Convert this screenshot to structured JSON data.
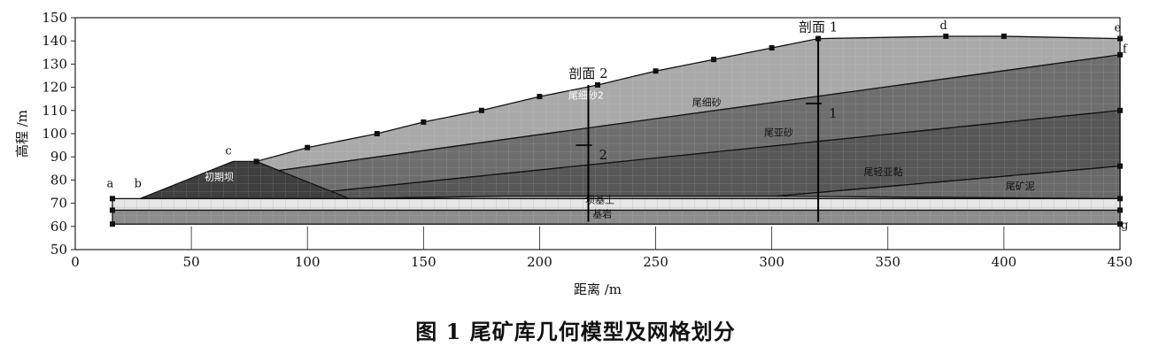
{
  "caption": "图 1    尾矿库几何模型及网格划分",
  "x_axis": {
    "title": "距离 /m",
    "min": 0,
    "max": 450,
    "ticks": [
      0,
      50,
      100,
      150,
      200,
      250,
      300,
      350,
      400,
      450
    ]
  },
  "y_axis": {
    "title": "高程 /m",
    "min": 50,
    "max": 150,
    "ticks": [
      50,
      60,
      70,
      80,
      90,
      100,
      110,
      120,
      130,
      140,
      150
    ]
  },
  "colors": {
    "dam": "#3f3f3f",
    "fine_sand_2": "#a9a9a9",
    "fine_sand": "#6e6e6e",
    "silty_sand": "#575757",
    "silty_clay": "#cdcdcd",
    "tailings_mud": "#6a6a6a",
    "foundation_soil": "#e6e6e6",
    "bedrock": "#8c8c8c",
    "outline": "#111111"
  },
  "regions": [
    {
      "key": "fine_sand_2",
      "label": "尾细砂2",
      "points": [
        [
          78,
          88
        ],
        [
          100,
          94
        ],
        [
          130,
          100
        ],
        [
          150,
          105
        ],
        [
          175,
          110
        ],
        [
          200,
          116
        ],
        [
          225,
          121
        ],
        [
          250,
          127
        ],
        [
          275,
          132
        ],
        [
          300,
          137
        ],
        [
          320,
          141
        ],
        [
          375,
          142
        ],
        [
          400,
          142
        ],
        [
          450,
          141
        ],
        [
          450,
          134
        ],
        [
          87,
          84
        ]
      ],
      "label_at": [
        220,
        115
      ]
    },
    {
      "key": "fine_sand",
      "label": "尾细砂",
      "points": [
        [
          87,
          84
        ],
        [
          450,
          134
        ],
        [
          450,
          110
        ],
        [
          109,
          75
        ]
      ],
      "label_at": [
        272,
        112
      ]
    },
    {
      "key": "silty_sand",
      "label": "尾亚砂",
      "points": [
        [
          109,
          75
        ],
        [
          450,
          110
        ],
        [
          450,
          86
        ],
        [
          302,
          73
        ],
        [
          185,
          73
        ],
        [
          118,
          72
        ]
      ],
      "label_at": [
        303,
        99
      ]
    },
    {
      "key": "silty_clay",
      "label": "尾轻亚黏",
      "points": [
        [
          118,
          72
        ],
        [
          185,
          73
        ],
        [
          302,
          73
        ],
        [
          450,
          86
        ],
        [
          450,
          72
        ],
        [
          118,
          72
        ]
      ],
      "label_at": [
        348,
        82
      ]
    },
    {
      "key": "tailings_mud",
      "label": "尾矿泥",
      "points": [
        [
          302,
          73
        ],
        [
          450,
          86
        ],
        [
          450,
          72
        ]
      ],
      "label_at": [
        407,
        76
      ]
    },
    {
      "key": "dam",
      "label": "初期坝",
      "points": [
        [
          28,
          72
        ],
        [
          68,
          88
        ],
        [
          78,
          88
        ],
        [
          118,
          72
        ]
      ],
      "label_at": [
        62,
        80
      ]
    },
    {
      "key": "foundation_soil",
      "label": "坝基土",
      "points": [
        [
          16,
          72
        ],
        [
          450,
          72
        ],
        [
          450,
          67
        ],
        [
          16,
          67
        ]
      ],
      "label_at": [
        226,
        70
      ]
    },
    {
      "key": "bedrock",
      "label": "基岩",
      "points": [
        [
          16,
          67
        ],
        [
          450,
          67
        ],
        [
          450,
          61
        ],
        [
          16,
          61
        ]
      ],
      "label_at": [
        227,
        64
      ]
    }
  ],
  "point_labels": [
    {
      "text": "a",
      "at": [
        15,
        77
      ]
    },
    {
      "text": "b",
      "at": [
        27,
        77
      ]
    },
    {
      "text": "c",
      "at": [
        66,
        91
      ]
    },
    {
      "text": "d",
      "at": [
        374,
        145
      ]
    },
    {
      "text": "e",
      "at": [
        449,
        144
      ]
    },
    {
      "text": "f",
      "at": [
        452,
        135
      ]
    },
    {
      "text": "g",
      "at": [
        452,
        59
      ]
    }
  ],
  "sections": [
    {
      "label": "剖面 2",
      "x": 221,
      "y_top": 121,
      "y_bottom": 62,
      "label_at": [
        221,
        124
      ],
      "marker": "2",
      "marker_y": 95
    },
    {
      "label": "剖面 1",
      "x": 320,
      "y_top": 141,
      "y_bottom": 62,
      "label_at": [
        320,
        144
      ],
      "marker": "1",
      "marker_y": 113
    }
  ]
}
